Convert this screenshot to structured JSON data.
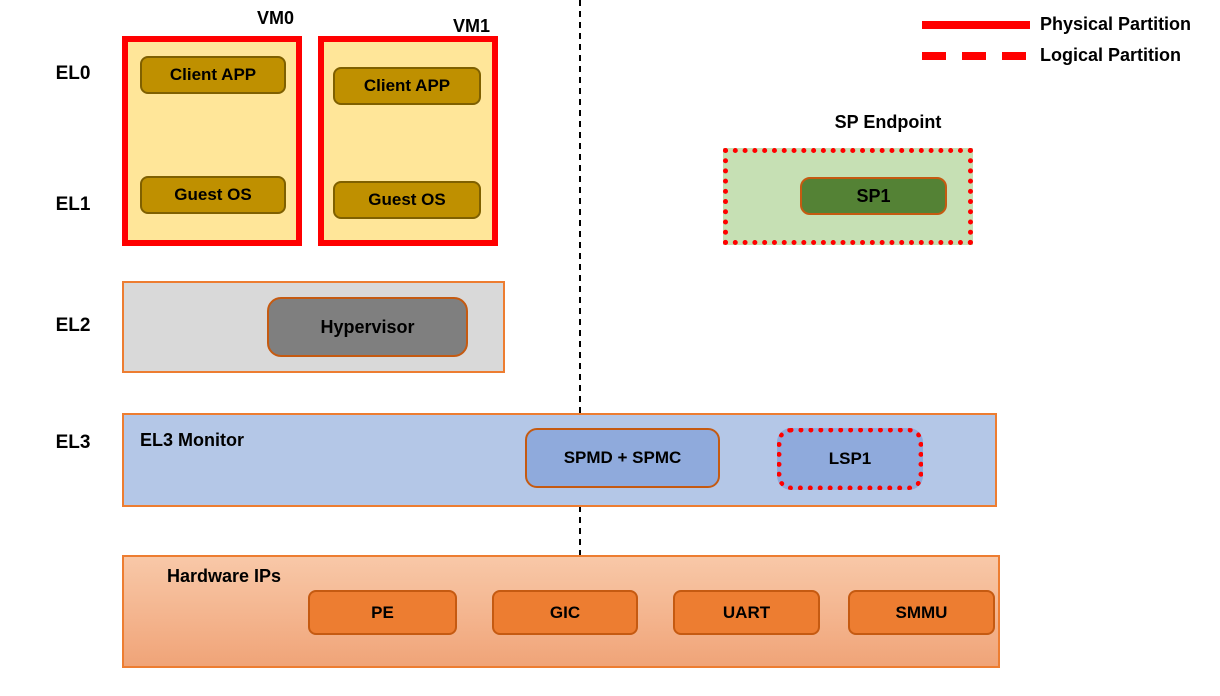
{
  "colors": {
    "red": "#FF0000",
    "line_black": "#000000",
    "vm_fill": "#FFE699",
    "gold_fill": "#BF9000",
    "gold_border": "#7F6000",
    "green_fill": "#C6E0B4",
    "dark_green": "#548235",
    "gray_fill": "#D9D9D9",
    "dark_gray": "#7F7F7F",
    "blue_fill": "#B4C7E7",
    "mid_blue": "#8FAADC",
    "orange_border": "#ED7D31",
    "brown_border": "#C55A11",
    "hw_top": "#F8C8A8",
    "hw_bottom": "#F0A478",
    "hw_box": "#ED7D31"
  },
  "el_labels": [
    "EL0",
    "EL1",
    "EL2",
    "EL3"
  ],
  "vms": [
    {
      "name": "VM0",
      "app": "Client APP",
      "os": "Guest OS"
    },
    {
      "name": "VM1",
      "app": "Client APP",
      "os": "Guest OS"
    }
  ],
  "legend": [
    {
      "style": "solid",
      "label": "Physical Partition"
    },
    {
      "style": "dashed",
      "label": "Logical Partition"
    }
  ],
  "sp_endpoint": {
    "title": "SP Endpoint",
    "sp": "SP1"
  },
  "el2_row": {
    "hypervisor": "Hypervisor"
  },
  "el3_row": {
    "title": "EL3 Monitor",
    "spm": "SPMD + SPMC",
    "lsp": "LSP1"
  },
  "hardware": {
    "title": "Hardware IPs",
    "ips": [
      "PE",
      "GIC",
      "UART",
      "SMMU"
    ]
  }
}
